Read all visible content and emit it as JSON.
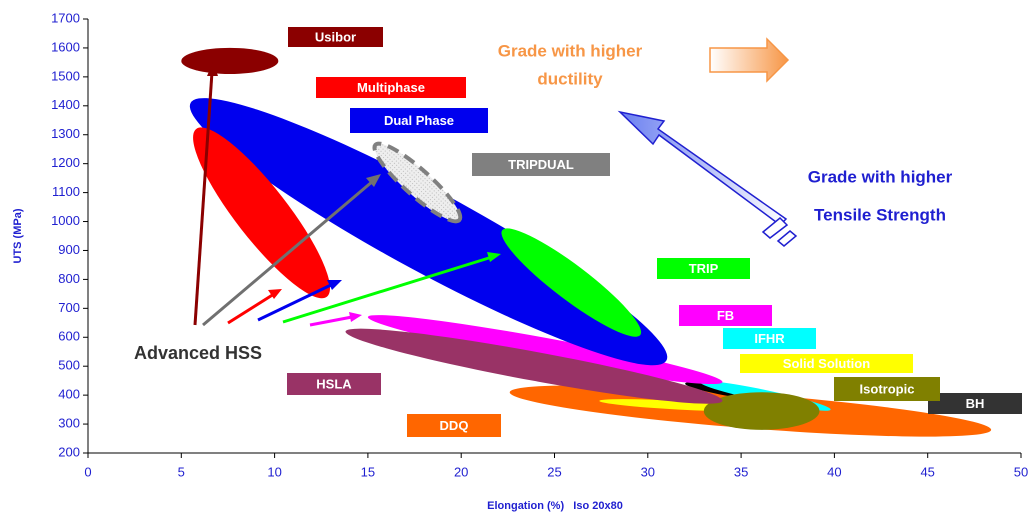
{
  "chart_data": {
    "type": "region",
    "x_label": "Elongation (%)   Iso 20x80",
    "y_label": "UTS (MPa)",
    "xlim": [
      0,
      50
    ],
    "xticks": [
      0,
      5,
      10,
      15,
      20,
      25,
      30,
      35,
      40,
      45,
      50
    ],
    "ylim": [
      200,
      1700
    ],
    "yticks": [
      200,
      300,
      400,
      500,
      600,
      700,
      800,
      900,
      1000,
      1100,
      1200,
      1300,
      1400,
      1500,
      1600,
      1700
    ],
    "series": [
      {
        "name": "DDQ",
        "color": "#ff6600",
        "x": [
          22.6,
          48.4
        ],
        "y": [
          410,
          280
        ],
        "spread": 60
      },
      {
        "name": "BH",
        "color": "#000000",
        "x": [
          32,
          38
        ],
        "y": [
          440,
          380
        ],
        "spread": 20
      },
      {
        "name": "IFHR",
        "color": "#00ffff",
        "x": [
          32.8,
          39.8
        ],
        "y": [
          445,
          350
        ],
        "spread": 20
      },
      {
        "name": "Solid Solution",
        "color": "#ffff00",
        "x": [
          27.4,
          36
        ],
        "y": [
          380,
          350
        ],
        "spread": 15
      },
      {
        "name": "Isotropic",
        "color": "#808000",
        "x": [
          33,
          39.2
        ],
        "y": [
          345,
          345
        ],
        "spread": 65
      },
      {
        "name": "FB",
        "color": "#ff00ff",
        "x": [
          15,
          34
        ],
        "y": [
          670,
          445
        ],
        "spread": 40
      },
      {
        "name": "Dual Phase",
        "color": "#0000ee",
        "x": [
          5.5,
          31
        ],
        "y": [
          1410,
          520
        ],
        "spread": 140
      },
      {
        "name": "HSLA",
        "color": "#993366",
        "x": [
          13.8,
          34
        ],
        "y": [
          620,
          380
        ],
        "spread": 50
      },
      {
        "name": "TRIP",
        "color": "#00ff00",
        "x": [
          22.2,
          29.6
        ],
        "y": [
          970,
          608
        ],
        "spread": 60
      },
      {
        "name": "Multiphase",
        "color": "#ff0000",
        "x": [
          5.8,
          12.8
        ],
        "y": [
          1320,
          740
        ],
        "spread": 90
      },
      {
        "name": "Usibor",
        "color": "#8b0000",
        "x": [
          5,
          10.2
        ],
        "y": [
          1555,
          1555
        ],
        "spread": 45
      },
      {
        "name": "TRIPDUAL",
        "color": "#808080",
        "x": [
          15.4,
          19.9
        ],
        "y": [
          1265,
          1005
        ],
        "spread": 45
      }
    ],
    "annotations": [
      "Grade with higher",
      "ductility",
      "Grade with higher",
      "Tensile Strength",
      "Advanced HSS"
    ]
  }
}
